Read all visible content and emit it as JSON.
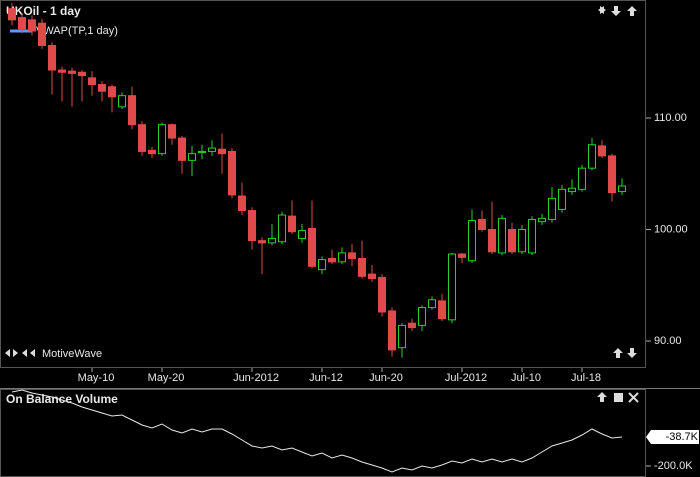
{
  "chart_data": [
    {
      "type": "candlestick",
      "title": "UKOil - 1 day",
      "legend": [
        {
          "name": "VWAP(TP,1 day)",
          "color": "#5b9cf0"
        }
      ],
      "watermark": "MotiveWave",
      "up_color": "#2ccf2c",
      "down_color": "#e04a4a",
      "categories": [
        null,
        null,
        null,
        null,
        null,
        null,
        null,
        null,
        "May-10",
        null,
        null,
        null,
        null,
        null,
        null,
        "May-20",
        null,
        null,
        null,
        null,
        null,
        null,
        null,
        null,
        "Jun-2012",
        null,
        null,
        null,
        null,
        null,
        null,
        "Jun-12",
        null,
        null,
        null,
        null,
        null,
        "Jun-20",
        null,
        null,
        null,
        null,
        null,
        null,
        null,
        "Jul-2012",
        null,
        null,
        null,
        null,
        null,
        "Jul-10",
        null,
        null,
        null,
        null,
        null,
        "Jul-18",
        null,
        null,
        null,
        null
      ],
      "open": [
        119.8,
        119.0,
        118.8,
        118.5,
        116.5,
        114.3,
        114.2,
        114.1,
        113.6,
        113.0,
        112.8,
        111.0,
        112.0,
        109.4,
        107.1,
        106.8,
        109.4,
        108.2,
        106.2,
        106.9,
        107.0,
        107.2,
        107.0,
        103.0,
        101.7,
        99.0,
        98.8,
        98.9,
        101.2,
        99.2,
        100.1,
        96.4,
        97.4,
        97.1,
        97.9,
        97.4,
        96.0,
        95.7,
        92.7,
        89.4,
        91.6,
        91.4,
        93.0,
        93.6,
        91.9,
        97.8,
        97.2,
        100.9,
        100.0,
        97.9,
        100.0,
        98.0,
        97.9,
        100.7,
        100.9,
        101.8,
        103.4,
        103.6,
        105.5,
        107.5,
        106.6,
        103.4
      ],
      "high": [
        120.3,
        119.4,
        119.2,
        118.9,
        116.8,
        114.6,
        114.5,
        114.3,
        114.2,
        113.3,
        113.0,
        112.3,
        112.8,
        109.7,
        107.4,
        109.6,
        109.5,
        108.4,
        107.5,
        107.6,
        108.0,
        108.6,
        107.3,
        104.2,
        102.0,
        99.3,
        100.5,
        101.6,
        102.6,
        100.5,
        102.6,
        97.6,
        98.2,
        98.4,
        98.7,
        99.0,
        96.8,
        96.0,
        93.0,
        91.6,
        92.0,
        93.2,
        94.0,
        94.2,
        97.9,
        97.9,
        101.8,
        101.7,
        102.5,
        101.3,
        100.6,
        100.4,
        101.2,
        101.4,
        103.8,
        104.0,
        104.5,
        105.8,
        108.2,
        108.0,
        106.8,
        104.6
      ],
      "low": [
        118.3,
        117.6,
        117.4,
        116.2,
        112.1,
        111.5,
        111.0,
        111.5,
        112.0,
        111.5,
        110.5,
        110.8,
        109.0,
        106.6,
        106.4,
        106.6,
        107.6,
        105.0,
        104.8,
        106.3,
        106.6,
        105.0,
        102.8,
        101.3,
        98.2,
        96.0,
        98.6,
        98.7,
        99.6,
        98.8,
        96.5,
        96.0,
        96.9,
        96.9,
        96.7,
        95.6,
        95.3,
        92.2,
        88.6,
        88.5,
        90.9,
        90.9,
        92.8,
        91.8,
        91.6,
        97.0,
        97.0,
        99.8,
        97.8,
        97.7,
        97.8,
        97.8,
        97.7,
        100.4,
        100.6,
        101.5,
        103.1,
        103.4,
        105.3,
        106.4,
        102.5,
        103.1
      ],
      "close": [
        118.8,
        118.0,
        117.8,
        116.5,
        114.3,
        114.1,
        114.0,
        113.8,
        113.0,
        112.4,
        111.9,
        112.0,
        109.4,
        107.0,
        106.8,
        109.4,
        108.2,
        106.2,
        106.8,
        107.0,
        107.3,
        106.8,
        103.1,
        101.7,
        99.0,
        98.8,
        99.2,
        101.3,
        99.8,
        99.9,
        96.7,
        97.3,
        97.1,
        97.9,
        97.4,
        95.8,
        95.6,
        92.6,
        89.2,
        91.4,
        91.2,
        93.0,
        93.7,
        92.0,
        97.8,
        97.5,
        100.8,
        100.0,
        98.0,
        101.0,
        98.0,
        100.0,
        100.9,
        101.0,
        102.8,
        103.6,
        103.7,
        105.5,
        107.6,
        106.6,
        103.3,
        103.9
      ],
      "ylim": [
        87.58,
        120.58
      ],
      "yticks": [
        {
          "value": 90,
          "label": "90.00"
        },
        {
          "value": 100,
          "label": "100.00"
        },
        {
          "value": 110,
          "label": "110.00"
        }
      ]
    },
    {
      "type": "line",
      "title": "On Balance Volume",
      "color": "#e8e8e8",
      "values": [
        211.5,
        222.6,
        205.9,
        194.8,
        183.7,
        167.0,
        150.3,
        128.1,
        111.4,
        94.7,
        78.1,
        83.6,
        55.8,
        28.0,
        11.3,
        33.6,
        0.2,
        -16.5,
        5.8,
        -10.9,
        5.8,
        5.8,
        -22.0,
        -55.4,
        -88.7,
        -99.9,
        -88.7,
        -111.0,
        -99.9,
        -122.1,
        -144.3,
        -127.7,
        -155.5,
        -138.8,
        -155.5,
        -177.7,
        -194.4,
        -211.1,
        -233.3,
        -211.1,
        -222.2,
        -199.9,
        -211.1,
        -194.4,
        -172.1,
        -183.3,
        -161.0,
        -177.7,
        -161.0,
        -177.7,
        -161.0,
        -177.7,
        -155.5,
        -122.1,
        -88.7,
        -72.1,
        -55.4,
        -27.6,
        5.8,
        -22.0,
        -44.3,
        -38.7
      ],
      "current_value": -38.7,
      "current_value_label": "-38.7K",
      "ylim": [
        -261.2,
        222.7
      ],
      "yticks": [
        {
          "value": -200,
          "label": "-200.0K"
        }
      ]
    }
  ]
}
